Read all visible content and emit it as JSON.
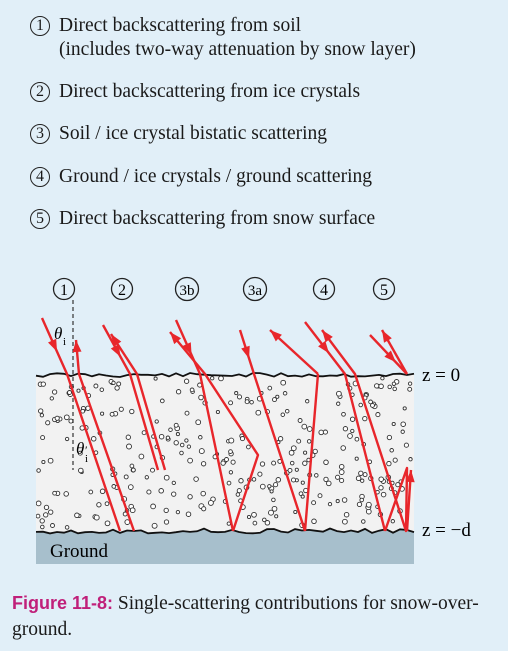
{
  "legend": [
    {
      "num": "1",
      "line1": "Direct backscattering from soil",
      "line2": "(includes two-way attenuation by snow layer)"
    },
    {
      "num": "2",
      "line1": "Direct backscattering from ice crystals"
    },
    {
      "num": "3",
      "line1": "Soil / ice crystal bistatic scattering"
    },
    {
      "num": "4",
      "line1": "Ground / ice crystals / ground scattering"
    },
    {
      "num": "5",
      "line1": "Direct backscattering from snow surface"
    }
  ],
  "diagram": {
    "mechanisms": [
      "1",
      "2",
      "3b",
      "3a",
      "4",
      "5"
    ],
    "theta_i": "θ",
    "theta_i_sub": "i",
    "theta_t": "θ",
    "theta_t_sub": "i",
    "theta_t_prime": "′",
    "z_top": "z = 0",
    "z_bottom": "z = −d",
    "ground": "Ground"
  },
  "caption": {
    "label": "Figure 11-8:",
    "text": " Single-scattering contributions for snow-over-ground."
  },
  "colors": {
    "background": "#e1eff8",
    "snow": "#f2f2f2",
    "ground": "#a7bfcc",
    "ray": "#e8262b",
    "accent": "#c0207a"
  }
}
